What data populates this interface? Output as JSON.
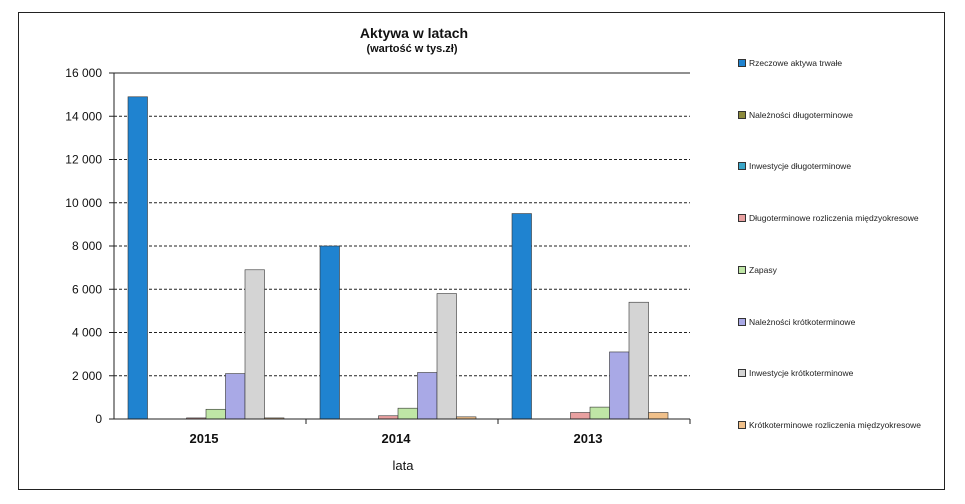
{
  "chart_data": {
    "type": "bar",
    "title": "Aktywa w latach",
    "subtitle": "(wartość w tys.zł)",
    "xlabel": "lata",
    "ylabel": "",
    "categories": [
      "2015",
      "2014",
      "2013"
    ],
    "ylim": [
      0,
      16000
    ],
    "yticks": [
      0,
      2000,
      4000,
      6000,
      8000,
      10000,
      12000,
      14000,
      16000
    ],
    "ytick_labels": [
      "0",
      "2 000",
      "4 000",
      "6 000",
      "8 000",
      "10 000",
      "12 000",
      "14 000",
      "16 000"
    ],
    "grid": "dashed horizontal",
    "legend_position": "right",
    "series": [
      {
        "name": "Rzeczowe aktywa trwałe",
        "color": "#1f83d0",
        "values": [
          14900,
          8000,
          9500
        ]
      },
      {
        "name": "Należności długoterminowe",
        "color": "#8c8a3c",
        "values": [
          0,
          0,
          0
        ]
      },
      {
        "name": "Inwestycje długoterminowe",
        "color": "#3aa6c8",
        "values": [
          0,
          0,
          0
        ]
      },
      {
        "name": "Długoterminowe rozliczenia międzyokresowe",
        "color": "#e8a0a0",
        "values": [
          50,
          150,
          300
        ]
      },
      {
        "name": "Zapasy",
        "color": "#bfe6a6",
        "values": [
          450,
          500,
          550
        ]
      },
      {
        "name": "Należności krótkoterminowe",
        "color": "#a9a9e6",
        "values": [
          2100,
          2150,
          3100
        ]
      },
      {
        "name": "Inwestycje krótkoterminowe",
        "color": "#d4d4d4",
        "values": [
          6900,
          5800,
          5400
        ]
      },
      {
        "name": "Krótkoterminowe rozliczenia międzyokresowe",
        "color": "#f0c08a",
        "values": [
          50,
          100,
          300
        ]
      }
    ]
  }
}
